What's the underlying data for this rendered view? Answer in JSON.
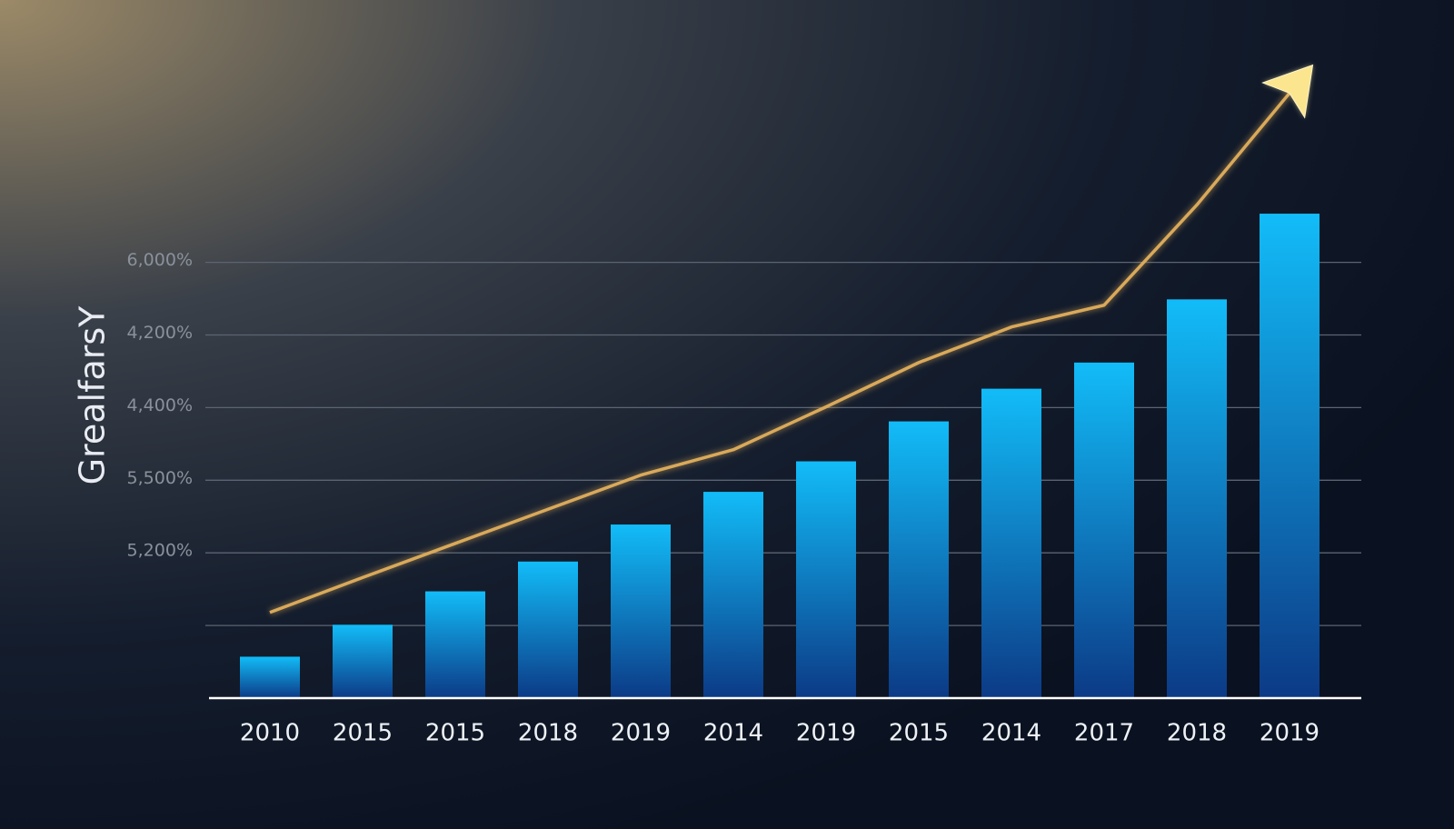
{
  "chart_data": {
    "type": "bar",
    "y_label": "GrealfarsY",
    "categories": [
      "2010",
      "2015",
      "2015",
      "2018",
      "2019",
      "2014",
      "2019",
      "2015",
      "2014",
      "2017",
      "2018",
      "2019"
    ],
    "series": [
      {
        "type": "bar",
        "color": "#12b8f5",
        "values": [
          0.57,
          1.01,
          1.47,
          1.88,
          2.39,
          2.84,
          3.26,
          3.81,
          4.26,
          4.62,
          5.49,
          6.67
        ]
      },
      {
        "type": "line",
        "color": "#d9a95a",
        "values": [
          1.18,
          1.66,
          2.13,
          2.6,
          3.07,
          3.42,
          4.01,
          4.62,
          5.11,
          5.41,
          6.79,
          8.33
        ]
      }
    ],
    "ylim": [
      0,
      9
    ],
    "yticks": [
      1,
      {
        "value": 2,
        "label": "5,200%"
      },
      {
        "value": 3,
        "label": "5,500%"
      },
      {
        "value": 4,
        "label": "4,400%"
      },
      {
        "value": 5,
        "label": "4,200%"
      },
      {
        "value": 6,
        "label": "6,000%"
      }
    ],
    "grid": true
  }
}
